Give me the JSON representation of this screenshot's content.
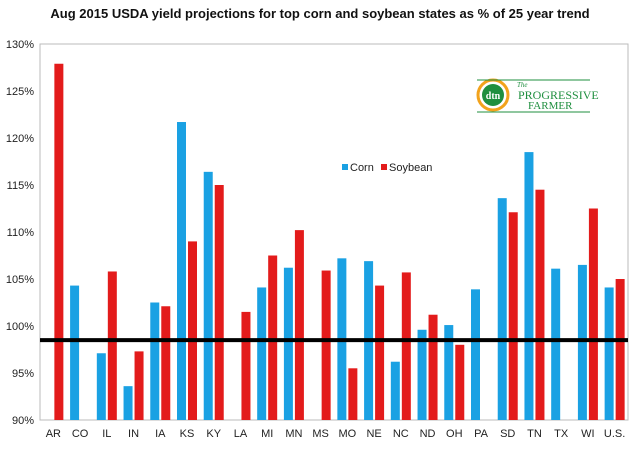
{
  "chart_data": {
    "type": "bar",
    "title": "Aug 2015 USDA yield projections for top corn and soybean states as % of 25 year trend",
    "categories": [
      "AR",
      "CO",
      "IL",
      "IN",
      "IA",
      "KS",
      "KY",
      "LA",
      "MI",
      "MN",
      "MS",
      "MO",
      "NE",
      "NC",
      "ND",
      "OH",
      "PA",
      "SD",
      "TN",
      "TX",
      "WI",
      "U.S."
    ],
    "series": [
      {
        "name": "Corn",
        "color": "#1aa1e3",
        "values": [
          null,
          104.3,
          97.1,
          93.6,
          102.5,
          121.7,
          116.4,
          null,
          104.1,
          106.2,
          null,
          107.2,
          106.9,
          96.2,
          99.6,
          100.1,
          103.9,
          113.6,
          118.5,
          106.1,
          106.5,
          104.1
        ]
      },
      {
        "name": "Soybean",
        "color": "#e31b1b",
        "values": [
          127.9,
          null,
          105.8,
          97.3,
          102.1,
          109.0,
          115.0,
          101.5,
          107.5,
          110.2,
          105.9,
          95.5,
          104.3,
          105.7,
          101.2,
          98.0,
          null,
          112.1,
          114.5,
          null,
          112.5,
          105.0
        ]
      }
    ],
    "ylim": [
      90,
      130
    ],
    "yticks": [
      "90%",
      "95%",
      "100%",
      "105%",
      "110%",
      "115%",
      "120%",
      "125%",
      "130%"
    ],
    "reference_line": 98.5,
    "legend_position": "upper-middle",
    "grid": false
  },
  "logo": {
    "mark": "dtn",
    "line1": "The",
    "line2": "PROGRESSIVE",
    "line3": "FARMER"
  }
}
